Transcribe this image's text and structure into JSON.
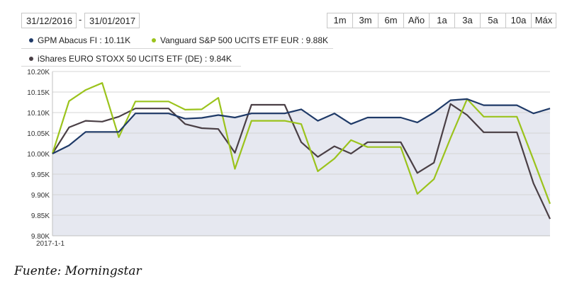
{
  "date_range": {
    "from": "31/12/2016",
    "separator": "-",
    "to": "31/01/2017"
  },
  "range_buttons": [
    "1m",
    "3m",
    "6m",
    "Año",
    "1a",
    "3a",
    "5a",
    "10a",
    "Máx"
  ],
  "legend": [
    {
      "label": "GPM Abacus FI : 10.11K",
      "color": "#1f3a68"
    },
    {
      "label": "Vanguard S&P 500 UCITS ETF EUR : 9.88K",
      "color": "#9bc31c"
    },
    {
      "label": "iShares EURO STOXX 50 UCITS ETF (DE) : 9.84K",
      "color": "#4a3f45"
    }
  ],
  "caption": "Fuente: Morningstar",
  "chart_data": {
    "type": "line",
    "title": "",
    "xlabel": "",
    "ylabel": "",
    "x_tick_labels": [
      "2017-1-1"
    ],
    "y_tick_labels": [
      "9.80K",
      "9.85K",
      "9.90K",
      "9.95K",
      "10.00K",
      "10.05K",
      "10.10K",
      "10.15K",
      "10.20K"
    ],
    "ylim": [
      9800,
      10200
    ],
    "grid": "horizontal",
    "area_fill_series": 0,
    "area_fill_color": "#e6e8f0",
    "series": [
      {
        "name": "GPM Abacus FI",
        "color": "#1f3a68",
        "values": [
          10000,
          10020,
          10053,
          10053,
          10053,
          10098,
          10098,
          10098,
          10085,
          10087,
          10094,
          10088,
          10098,
          10098,
          10098,
          10108,
          10080,
          10098,
          10072,
          10088,
          10088,
          10088,
          10076,
          10100,
          10130,
          10133,
          10118,
          10118,
          10118,
          10098,
          10110
        ]
      },
      {
        "name": "Vanguard S&P 500 UCITS ETF EUR",
        "color": "#9bc31c",
        "values": [
          10000,
          10128,
          10155,
          10172,
          10040,
          10127,
          10127,
          10127,
          10107,
          10108,
          10136,
          9963,
          10080,
          10080,
          10080,
          10072,
          9957,
          9988,
          10033,
          10016,
          10016,
          10016,
          9902,
          9938,
          10038,
          10133,
          10090,
          10090,
          10090,
          9985,
          9878
        ]
      },
      {
        "name": "iShares EURO STOXX 50 UCITS ETF (DE)",
        "color": "#4a3f45",
        "values": [
          10000,
          10064,
          10080,
          10078,
          10090,
          10110,
          10110,
          10110,
          10072,
          10062,
          10060,
          10002,
          10119,
          10119,
          10119,
          10028,
          9992,
          10018,
          10000,
          10028,
          10028,
          10028,
          9953,
          9978,
          10121,
          10094,
          10052,
          10052,
          10052,
          9928,
          9841
        ]
      }
    ]
  }
}
